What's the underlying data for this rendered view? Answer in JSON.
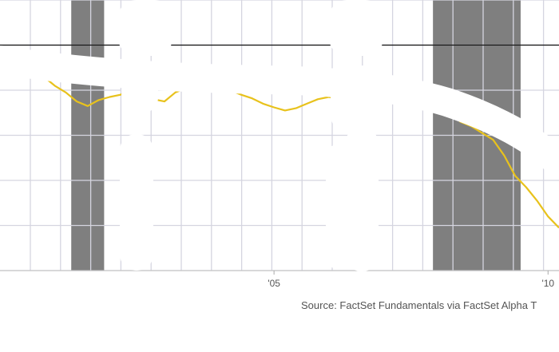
{
  "chart_data": {
    "type": "line",
    "title": "",
    "xlabel": "",
    "ylabel": "",
    "xlim": [
      2000.0,
      2010.2
    ],
    "ylim": [
      0,
      6
    ],
    "x_tick_labels": [
      {
        "x": 2005,
        "label": "'05"
      },
      {
        "x": 2010,
        "label": "'10"
      }
    ],
    "grid": true,
    "shaded_periods": [
      [
        2001.3,
        2001.9
      ],
      [
        2007.9,
        2009.5
      ]
    ],
    "reference_level": 5.0,
    "series": [
      {
        "color": "#e8c21c",
        "x": [
          2000.0,
          2000.2,
          2000.4,
          2000.6,
          2000.8,
          2001.0,
          2001.2,
          2001.4,
          2001.6,
          2001.8,
          2002.0,
          2002.2,
          2002.4,
          2002.6,
          2002.8,
          2003.0,
          2003.2,
          2003.4,
          2003.6,
          2003.8,
          2004.0,
          2004.2,
          2004.4,
          2004.6,
          2004.8,
          2005.0,
          2005.2,
          2005.4,
          2005.6,
          2005.8,
          2006.0,
          2006.2,
          2006.4,
          2006.6,
          2006.8,
          2007.0,
          2007.2,
          2007.4,
          2007.6,
          2007.8,
          2007.9,
          2008.0,
          2008.2,
          2008.4,
          2008.6,
          2008.8,
          2009.0,
          2009.2,
          2009.4,
          2009.6,
          2009.8,
          2010.0,
          2010.2
        ],
        "values": [
          4.78,
          4.75,
          4.7,
          4.55,
          4.3,
          4.1,
          3.95,
          3.75,
          3.65,
          3.78,
          3.85,
          3.9,
          4.05,
          3.95,
          3.8,
          3.75,
          3.95,
          4.05,
          4.2,
          4.1,
          4.05,
          4.0,
          3.9,
          3.82,
          3.7,
          3.62,
          3.55,
          3.6,
          3.7,
          3.8,
          3.85,
          3.8,
          3.75,
          3.78,
          3.8,
          3.88,
          3.9,
          3.85,
          3.8,
          3.82,
          3.85,
          3.7,
          3.55,
          3.3,
          3.2,
          3.05,
          2.9,
          2.55,
          2.1,
          1.85,
          1.55,
          1.2,
          0.95
        ]
      },
      {
        "color": "#8dc63f",
        "x": [
          2000.0,
          2000.15,
          2000.3,
          2000.45,
          2000.6
        ],
        "values": [
          4.8,
          4.77,
          4.72,
          4.65,
          4.5
        ]
      }
    ],
    "source": "Source: FactSet Fundamentals via FactSet Alpha T"
  }
}
